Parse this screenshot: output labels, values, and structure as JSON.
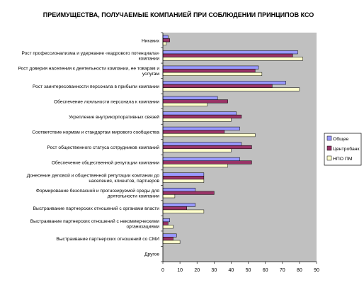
{
  "chart_data": {
    "type": "bar",
    "orientation": "horizontal",
    "title": "ПРЕИМУЩЕСТВА, ПОЛУЧАЕМЫЕ КОМПАНИЕЙ ПРИ СОБЛЮДЕНИИ ПРИНЦИПОВ КСО",
    "xlabel": "",
    "ylabel": "",
    "xlim": [
      0,
      90
    ],
    "xticks": [
      0,
      10,
      20,
      30,
      40,
      50,
      60,
      70,
      80,
      90
    ],
    "grid": false,
    "legend_position": "right",
    "categories": [
      [
        "Никаких"
      ],
      [
        "Рост профессионализма и удержание «кадрового потенциала»",
        "компании"
      ],
      [
        "Рост доверия населения к деятельности компании, ее товарам и",
        "услугам"
      ],
      [
        "Рост заинтересованности персонала в прибыли компании"
      ],
      [
        "Обеспечение лояльности персонала к компании"
      ],
      [
        "Укрепление внутрикорпоративных связей"
      ],
      [
        "Соответствие нормам и стандартам мирового сообщества"
      ],
      [
        "Рост общественного статуса сотрудников компаний"
      ],
      [
        "Обеспечение общественной репутации компании"
      ],
      [
        "Донесение деловой и общественной репутации компании до",
        "населения, клиентов, партнеров"
      ],
      [
        "Формирование безопасной и прогнозируемой среды для",
        "деятельности компании"
      ],
      [
        "Выстраивание партнерских отношений с органами власти"
      ],
      [
        "Выстраивание партнерских отношений с некоммерческими",
        "организациями"
      ],
      [
        "Выстраивание партнерских отношений со СМИ"
      ],
      [
        "Другое"
      ]
    ],
    "series": [
      {
        "name": "Общее",
        "color": "#9999FF",
        "values": [
          3,
          79,
          56,
          72,
          32,
          43,
          45,
          46,
          45,
          24,
          19,
          19,
          4,
          8,
          0
        ]
      },
      {
        "name": "Центробанк",
        "color": "#993366",
        "values": [
          4,
          76,
          54,
          64,
          38,
          46,
          36,
          52,
          52,
          24,
          30,
          14,
          3,
          6,
          0
        ]
      },
      {
        "name": "НПО ПМ",
        "color": "#FFFFCC",
        "values": [
          2,
          82,
          58,
          80,
          26,
          40,
          54,
          40,
          38,
          24,
          7,
          24,
          6,
          10,
          0
        ]
      }
    ]
  }
}
